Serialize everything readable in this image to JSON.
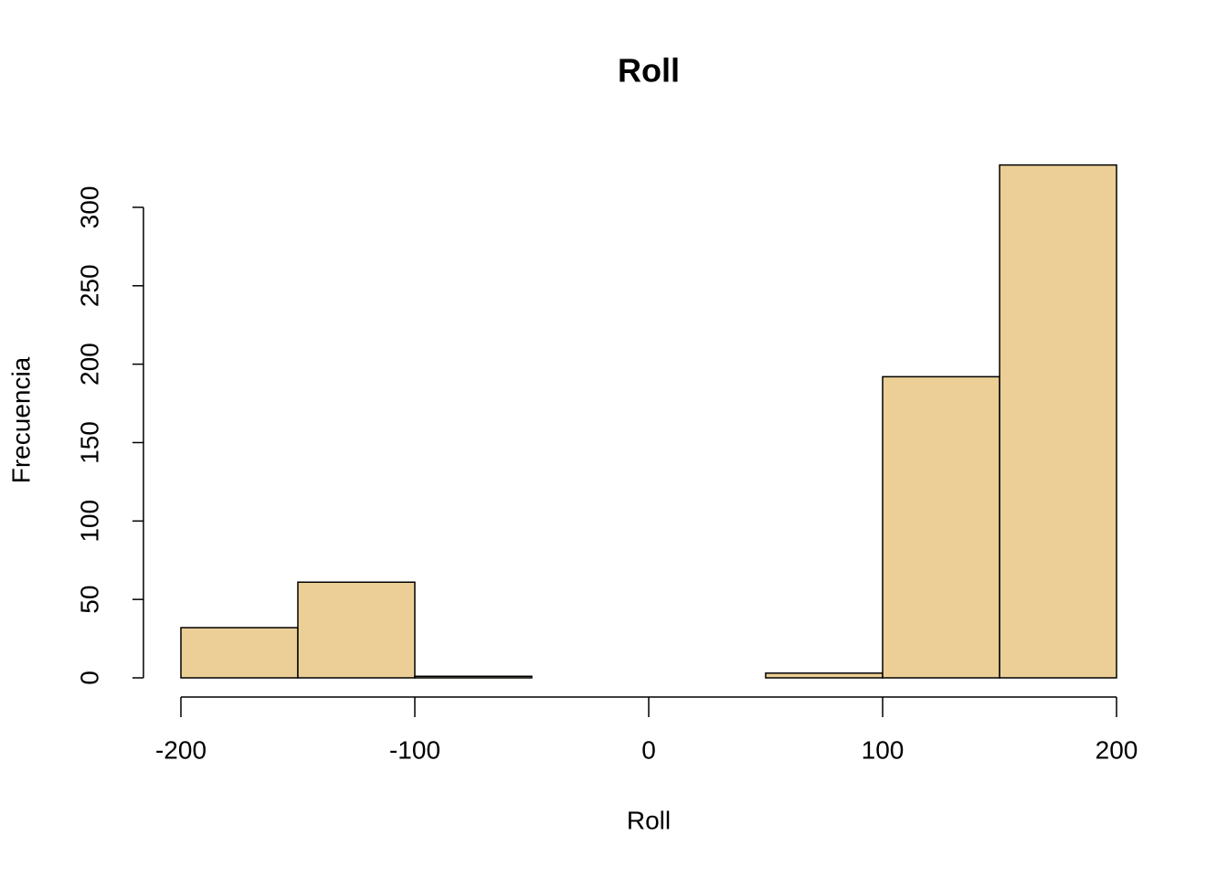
{
  "chart_data": {
    "type": "histogram",
    "title": "Roll",
    "x_label": "Roll",
    "y_label": "Frecuencia",
    "bins": [
      -200,
      -150,
      -100,
      -50,
      0,
      50,
      100,
      150,
      200
    ],
    "values": [
      32,
      61,
      1,
      0,
      0,
      3,
      192,
      327
    ],
    "color": "#ebcf96",
    "xlim": [
      -200,
      200
    ],
    "xticks": [
      -200,
      -100,
      0,
      100,
      200
    ],
    "ylim": [
      0,
      327
    ],
    "yticks": [
      0,
      50,
      100,
      150,
      200,
      250,
      300
    ],
    "grid": false
  }
}
